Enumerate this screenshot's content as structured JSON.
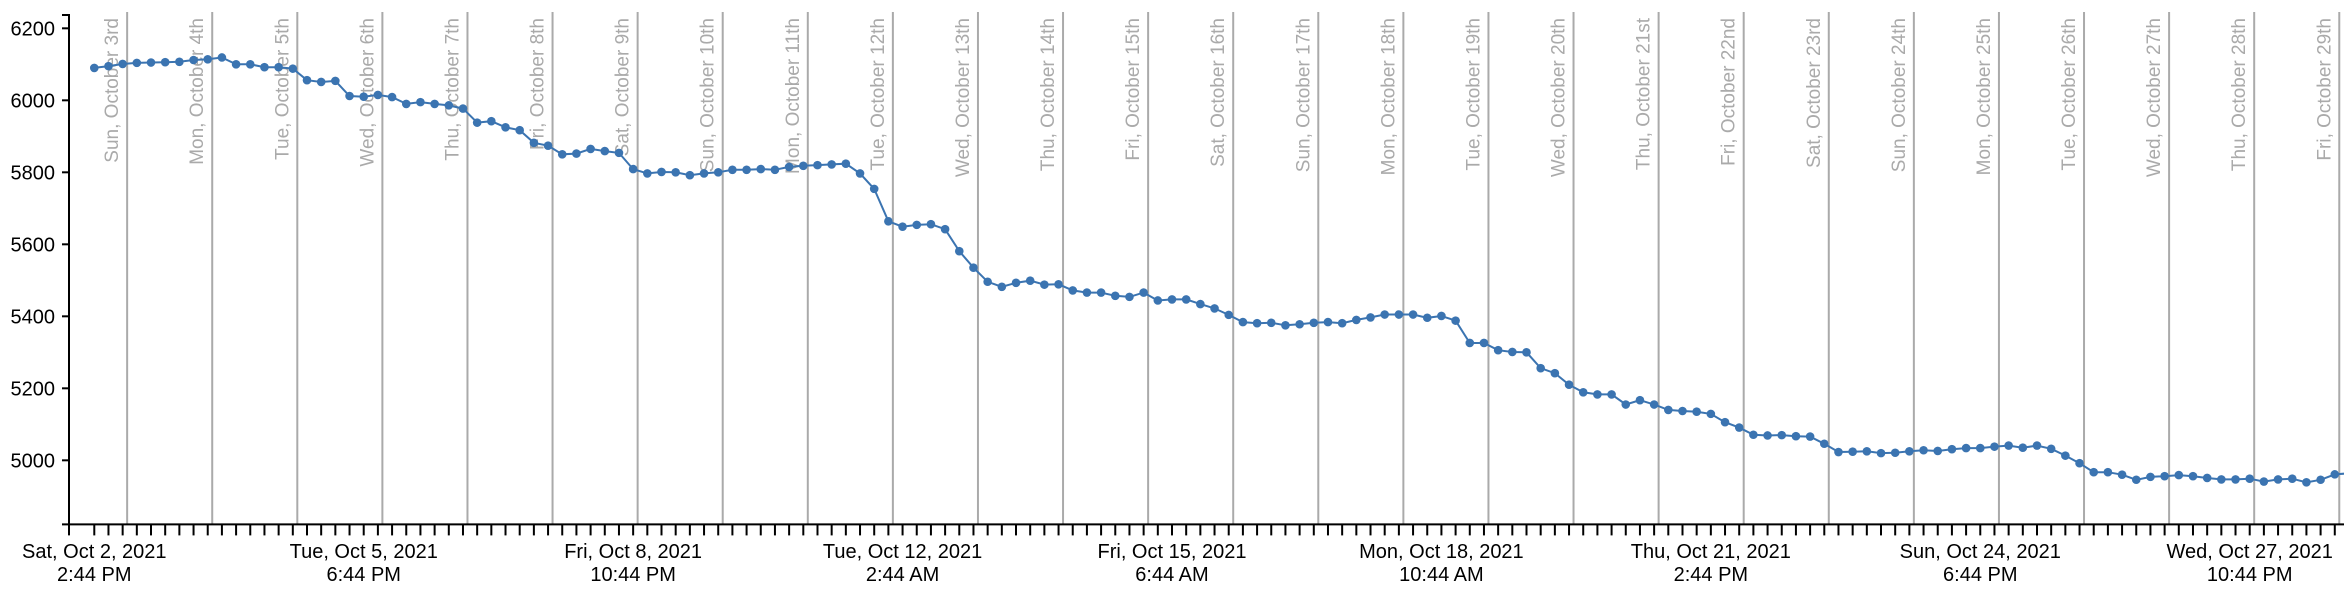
{
  "chart_data": {
    "type": "line",
    "title": "",
    "xlabel": "",
    "ylabel": "",
    "markers": true,
    "grid": false,
    "colors": {
      "series": "#3b74b1",
      "day_lines": "#aaaaaa",
      "axis": "#000000"
    },
    "xlim": [
      "2021-10-02 07:36",
      "2021-10-29 01:20"
    ],
    "ylim": [
      4822,
      6237
    ],
    "y_ticks": [
      5000,
      5200,
      5400,
      5600,
      5800,
      6000,
      6200
    ],
    "x_tick_labels": [
      {
        "x": "2021-10-02 14:44",
        "line1": "Sat, Oct 2, 2021",
        "line2": "2:44 PM"
      },
      {
        "x": "2021-10-05 18:44",
        "line1": "Tue, Oct 5, 2021",
        "line2": "6:44 PM"
      },
      {
        "x": "2021-10-08 22:44",
        "line1": "Fri, Oct 8, 2021",
        "line2": "10:44 PM"
      },
      {
        "x": "2021-10-12 02:44",
        "line1": "Tue, Oct 12, 2021",
        "line2": "2:44 AM"
      },
      {
        "x": "2021-10-15 06:44",
        "line1": "Fri, Oct 15, 2021",
        "line2": "6:44 AM"
      },
      {
        "x": "2021-10-18 10:44",
        "line1": "Mon, Oct 18, 2021",
        "line2": "10:44 AM"
      },
      {
        "x": "2021-10-21 14:44",
        "line1": "Thu, Oct 21, 2021",
        "line2": "2:44 PM"
      },
      {
        "x": "2021-10-24 18:44",
        "line1": "Sun, Oct 24, 2021",
        "line2": "6:44 PM"
      },
      {
        "x": "2021-10-27 22:44",
        "line1": "Wed, Oct 27, 2021",
        "line2": "10:44 PM"
      }
    ],
    "day_markers": [
      {
        "date": "2021-10-03 00:00",
        "label": "Sun, October 3rd"
      },
      {
        "date": "2021-10-04 00:00",
        "label": "Mon, October 4th"
      },
      {
        "date": "2021-10-05 00:00",
        "label": "Tue, October 5th"
      },
      {
        "date": "2021-10-06 00:00",
        "label": "Wed, October 6th"
      },
      {
        "date": "2021-10-07 00:00",
        "label": "Thu, October 7th"
      },
      {
        "date": "2021-10-08 00:00",
        "label": "Fri, October 8th"
      },
      {
        "date": "2021-10-09 00:00",
        "label": "Sat, October 9th"
      },
      {
        "date": "2021-10-10 00:00",
        "label": "Sun, October 10th"
      },
      {
        "date": "2021-10-11 00:00",
        "label": "Mon, October 11th"
      },
      {
        "date": "2021-10-12 00:00",
        "label": "Tue, October 12th"
      },
      {
        "date": "2021-10-13 00:00",
        "label": "Wed, October 13th"
      },
      {
        "date": "2021-10-14 00:00",
        "label": "Thu, October 14th"
      },
      {
        "date": "2021-10-15 00:00",
        "label": "Fri, October 15th"
      },
      {
        "date": "2021-10-16 00:00",
        "label": "Sat, October 16th"
      },
      {
        "date": "2021-10-17 00:00",
        "label": "Sun, October 17th"
      },
      {
        "date": "2021-10-18 00:00",
        "label": "Mon, October 18th"
      },
      {
        "date": "2021-10-19 00:00",
        "label": "Tue, October 19th"
      },
      {
        "date": "2021-10-20 00:00",
        "label": "Wed, October 20th"
      },
      {
        "date": "2021-10-21 00:00",
        "label": "Thu, October 21st"
      },
      {
        "date": "2021-10-22 00:00",
        "label": "Fri, October 22nd"
      },
      {
        "date": "2021-10-23 00:00",
        "label": "Sat, October 23rd"
      },
      {
        "date": "2021-10-24 00:00",
        "label": "Sun, October 24th"
      },
      {
        "date": "2021-10-25 00:00",
        "label": "Mon, October 25th"
      },
      {
        "date": "2021-10-26 00:00",
        "label": "Tue, October 26th"
      },
      {
        "date": "2021-10-27 00:00",
        "label": "Wed, October 27th"
      },
      {
        "date": "2021-10-28 00:00",
        "label": "Thu, October 28th"
      },
      {
        "date": "2021-10-29 00:00",
        "label": "Fri, October 29th"
      }
    ],
    "x": [
      "2021-10-02 14:44",
      "2021-10-02 18:44",
      "2021-10-02 22:44",
      "2021-10-03 02:44",
      "2021-10-03 06:44",
      "2021-10-03 10:44",
      "2021-10-03 14:44",
      "2021-10-03 18:44",
      "2021-10-03 22:44",
      "2021-10-04 02:44",
      "2021-10-04 06:44",
      "2021-10-04 10:44",
      "2021-10-04 14:44",
      "2021-10-04 18:44",
      "2021-10-04 22:44",
      "2021-10-05 02:44",
      "2021-10-05 06:44",
      "2021-10-05 10:44",
      "2021-10-05 14:44",
      "2021-10-05 18:44",
      "2021-10-05 22:44",
      "2021-10-06 02:44",
      "2021-10-06 06:44",
      "2021-10-06 10:44",
      "2021-10-06 14:44",
      "2021-10-06 18:44",
      "2021-10-06 22:44",
      "2021-10-07 02:44",
      "2021-10-07 06:44",
      "2021-10-07 10:44",
      "2021-10-07 14:44",
      "2021-10-07 18:44",
      "2021-10-07 22:44",
      "2021-10-08 02:44",
      "2021-10-08 06:44",
      "2021-10-08 10:44",
      "2021-10-08 14:44",
      "2021-10-08 18:44",
      "2021-10-08 22:44",
      "2021-10-09 02:44",
      "2021-10-09 06:44",
      "2021-10-09 10:44",
      "2021-10-09 14:44",
      "2021-10-09 18:44",
      "2021-10-09 22:44",
      "2021-10-10 02:44",
      "2021-10-10 06:44",
      "2021-10-10 10:44",
      "2021-10-10 14:44",
      "2021-10-10 18:44",
      "2021-10-10 22:44",
      "2021-10-11 02:44",
      "2021-10-11 06:44",
      "2021-10-11 10:44",
      "2021-10-11 14:44",
      "2021-10-11 18:44",
      "2021-10-11 22:44",
      "2021-10-12 02:44",
      "2021-10-12 06:44",
      "2021-10-12 10:44",
      "2021-10-12 14:44",
      "2021-10-12 18:44",
      "2021-10-12 22:44",
      "2021-10-13 02:44",
      "2021-10-13 06:44",
      "2021-10-13 10:44",
      "2021-10-13 14:44",
      "2021-10-13 18:44",
      "2021-10-13 22:44",
      "2021-10-14 02:44",
      "2021-10-14 06:44",
      "2021-10-14 10:44",
      "2021-10-14 14:44",
      "2021-10-14 18:44",
      "2021-10-14 22:44",
      "2021-10-15 02:44",
      "2021-10-15 06:44",
      "2021-10-15 10:44",
      "2021-10-15 14:44",
      "2021-10-15 18:44",
      "2021-10-15 22:44",
      "2021-10-16 02:44",
      "2021-10-16 06:44",
      "2021-10-16 10:44",
      "2021-10-16 14:44",
      "2021-10-16 18:44",
      "2021-10-16 22:44",
      "2021-10-17 02:44",
      "2021-10-17 06:44",
      "2021-10-17 10:44",
      "2021-10-17 14:44",
      "2021-10-17 18:44",
      "2021-10-17 22:44",
      "2021-10-18 02:44",
      "2021-10-18 06:44",
      "2021-10-18 10:44",
      "2021-10-18 14:44",
      "2021-10-18 18:44",
      "2021-10-18 22:44",
      "2021-10-19 02:44",
      "2021-10-19 06:44",
      "2021-10-19 10:44",
      "2021-10-19 14:44",
      "2021-10-19 18:44",
      "2021-10-19 22:44",
      "2021-10-20 02:44",
      "2021-10-20 06:44",
      "2021-10-20 10:44",
      "2021-10-20 14:44",
      "2021-10-20 18:44",
      "2021-10-20 22:44",
      "2021-10-21 02:44",
      "2021-10-21 06:44",
      "2021-10-21 10:44",
      "2021-10-21 14:44",
      "2021-10-21 18:44",
      "2021-10-21 22:44",
      "2021-10-22 02:44",
      "2021-10-22 06:44",
      "2021-10-22 10:44",
      "2021-10-22 14:44",
      "2021-10-22 18:44",
      "2021-10-22 22:44",
      "2021-10-23 02:44",
      "2021-10-23 06:44",
      "2021-10-23 10:44",
      "2021-10-23 14:44",
      "2021-10-23 18:44",
      "2021-10-23 22:44",
      "2021-10-24 02:44",
      "2021-10-24 06:44",
      "2021-10-24 10:44",
      "2021-10-24 14:44",
      "2021-10-24 18:44",
      "2021-10-24 22:44",
      "2021-10-25 02:44",
      "2021-10-25 06:44",
      "2021-10-25 10:44",
      "2021-10-25 14:44",
      "2021-10-25 18:44",
      "2021-10-25 22:44",
      "2021-10-26 02:44",
      "2021-10-26 06:44",
      "2021-10-26 10:44",
      "2021-10-26 14:44",
      "2021-10-26 18:44",
      "2021-10-26 22:44",
      "2021-10-27 02:44",
      "2021-10-27 06:44",
      "2021-10-27 10:44",
      "2021-10-27 14:44",
      "2021-10-27 18:44",
      "2021-10-27 22:44",
      "2021-10-28 02:44",
      "2021-10-28 06:44",
      "2021-10-28 10:44",
      "2021-10-28 14:44",
      "2021-10-28 18:44",
      "2021-10-28 22:44",
      "2021-10-29 02:44"
    ],
    "values": [
      6090,
      6095,
      6101,
      6104,
      6105,
      6106,
      6107,
      6112,
      6114,
      6119,
      6100,
      6100,
      6092,
      6092,
      6088,
      6056,
      6051,
      6054,
      6012,
      6010,
      6015,
      6009,
      5990,
      5995,
      5990,
      5986,
      5977,
      5938,
      5942,
      5925,
      5917,
      5882,
      5874,
      5850,
      5852,
      5865,
      5859,
      5854,
      5809,
      5797,
      5801,
      5800,
      5792,
      5797,
      5800,
      5807,
      5807,
      5809,
      5807,
      5815,
      5818,
      5820,
      5822,
      5824,
      5797,
      5754,
      5664,
      5649,
      5654,
      5656,
      5642,
      5581,
      5535,
      5496,
      5482,
      5493,
      5499,
      5488,
      5489,
      5472,
      5466,
      5466,
      5457,
      5454,
      5466,
      5444,
      5447,
      5447,
      5434,
      5422,
      5404,
      5384,
      5381,
      5382,
      5375,
      5378,
      5382,
      5384,
      5381,
      5390,
      5397,
      5405,
      5405,
      5405,
      5396,
      5401,
      5388,
      5326,
      5326,
      5306,
      5301,
      5300,
      5256,
      5242,
      5210,
      5189,
      5183,
      5183,
      5155,
      5167,
      5155,
      5140,
      5137,
      5135,
      5129,
      5106,
      5091,
      5071,
      5069,
      5070,
      5067,
      5066,
      5046,
      5023,
      5024,
      5025,
      5020,
      5021,
      5025,
      5028,
      5026,
      5031,
      5034,
      5034,
      5038,
      5041,
      5035,
      5041,
      5032,
      5013,
      4992,
      4967,
      4967,
      4960,
      4946,
      4954,
      4956,
      4959,
      4956,
      4951,
      4947,
      4947,
      4949,
      4941,
      4947,
      4949,
      4939,
      4946,
      4961,
      4964
    ]
  }
}
